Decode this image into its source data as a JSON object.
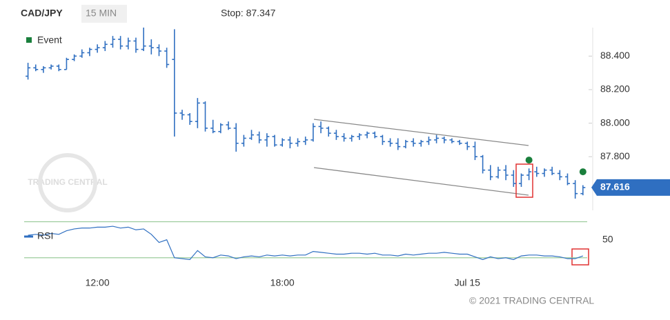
{
  "chart_data": {
    "type": "ohlc",
    "symbol": "CAD/JPY",
    "interval": "15 MIN",
    "stop_label": "Stop: 87.347",
    "copyright": "© 2021 TRADING CENTRAL",
    "watermark": "TRADING CENTRAL",
    "color": "#2f6fc1",
    "categories": [
      null,
      null,
      null,
      null,
      null,
      null,
      null,
      null,
      null,
      "12:00",
      null,
      null,
      null,
      null,
      null,
      null,
      null,
      null,
      null,
      null,
      null,
      null,
      null,
      null,
      null,
      null,
      null,
      null,
      null,
      null,
      null,
      null,
      null,
      "18:00",
      null,
      null,
      null,
      null,
      null,
      null,
      null,
      null,
      null,
      null,
      null,
      null,
      null,
      null,
      null,
      null,
      null,
      null,
      null,
      null,
      null,
      null,
      null,
      "Jul 15",
      null,
      null,
      null,
      null,
      null,
      null,
      null,
      null,
      null,
      null,
      null,
      null,
      null,
      null,
      null
    ],
    "ohlc": [
      [
        88.28,
        88.36,
        88.26,
        88.33
      ],
      [
        88.33,
        88.35,
        88.31,
        88.32
      ],
      [
        88.32,
        88.34,
        88.3,
        88.33
      ],
      [
        88.33,
        88.35,
        88.32,
        88.34
      ],
      [
        88.34,
        88.35,
        88.31,
        88.32
      ],
      [
        88.32,
        88.39,
        88.32,
        88.38
      ],
      [
        88.38,
        88.41,
        88.37,
        88.4
      ],
      [
        88.4,
        88.44,
        88.39,
        88.42
      ],
      [
        88.42,
        88.45,
        88.4,
        88.44
      ],
      [
        88.44,
        88.47,
        88.42,
        88.45
      ],
      [
        88.45,
        88.49,
        88.43,
        88.47
      ],
      [
        88.47,
        88.52,
        88.45,
        88.5
      ],
      [
        88.5,
        88.52,
        88.44,
        88.46
      ],
      [
        88.46,
        88.51,
        88.44,
        88.49
      ],
      [
        88.49,
        88.51,
        88.42,
        88.44
      ],
      [
        88.44,
        88.57,
        88.43,
        88.46
      ],
      [
        88.46,
        88.5,
        88.41,
        88.45
      ],
      [
        88.45,
        88.47,
        88.4,
        88.43
      ],
      [
        88.43,
        88.45,
        88.33,
        88.35
      ],
      [
        88.38,
        88.56,
        87.92,
        88.06
      ],
      [
        88.06,
        88.08,
        88.02,
        88.05
      ],
      [
        88.05,
        88.06,
        87.99,
        88.01
      ],
      [
        88.01,
        88.15,
        87.97,
        88.12
      ],
      [
        88.12,
        88.13,
        87.95,
        87.97
      ],
      [
        87.97,
        88.02,
        87.94,
        87.95
      ],
      [
        87.95,
        88.0,
        87.94,
        87.99
      ],
      [
        87.99,
        88.01,
        87.96,
        87.97
      ],
      [
        87.97,
        88.0,
        87.83,
        87.88
      ],
      [
        87.88,
        87.93,
        87.86,
        87.91
      ],
      [
        87.91,
        87.96,
        87.9,
        87.93
      ],
      [
        87.93,
        87.95,
        87.88,
        87.9
      ],
      [
        87.9,
        87.94,
        87.86,
        87.92
      ],
      [
        87.92,
        87.93,
        87.86,
        87.87
      ],
      [
        87.87,
        87.91,
        87.86,
        87.9
      ],
      [
        87.9,
        87.92,
        87.85,
        87.88
      ],
      [
        87.88,
        87.91,
        87.86,
        87.89
      ],
      [
        87.89,
        87.92,
        87.87,
        87.9
      ],
      [
        87.9,
        88.0,
        87.89,
        87.98
      ],
      [
        87.98,
        88.01,
        87.94,
        87.97
      ],
      [
        87.97,
        87.98,
        87.92,
        87.94
      ],
      [
        87.94,
        87.96,
        87.9,
        87.92
      ],
      [
        87.92,
        87.94,
        87.89,
        87.91
      ],
      [
        87.91,
        87.93,
        87.89,
        87.92
      ],
      [
        87.92,
        87.94,
        87.9,
        87.93
      ],
      [
        87.93,
        87.95,
        87.91,
        87.94
      ],
      [
        87.94,
        87.95,
        87.91,
        87.92
      ],
      [
        87.92,
        87.93,
        87.87,
        87.89
      ],
      [
        87.89,
        87.91,
        87.86,
        87.88
      ],
      [
        87.88,
        87.91,
        87.84,
        87.86
      ],
      [
        87.86,
        87.9,
        87.85,
        87.89
      ],
      [
        87.89,
        87.91,
        87.86,
        87.88
      ],
      [
        87.88,
        87.9,
        87.86,
        87.89
      ],
      [
        87.89,
        87.92,
        87.87,
        87.9
      ],
      [
        87.9,
        87.93,
        87.88,
        87.91
      ],
      [
        87.91,
        87.92,
        87.88,
        87.9
      ],
      [
        87.9,
        87.91,
        87.88,
        87.89
      ],
      [
        87.89,
        87.9,
        87.87,
        87.88
      ],
      [
        87.88,
        87.89,
        87.84,
        87.86
      ],
      [
        87.86,
        87.89,
        87.78,
        87.8
      ],
      [
        87.8,
        87.81,
        87.7,
        87.72
      ],
      [
        87.72,
        87.75,
        87.66,
        87.68
      ],
      [
        87.68,
        87.74,
        87.67,
        87.72
      ],
      [
        87.72,
        87.75,
        87.66,
        87.69
      ],
      [
        87.69,
        87.72,
        87.62,
        87.64
      ],
      [
        87.64,
        87.7,
        87.62,
        87.69
      ],
      [
        87.69,
        87.73,
        87.66,
        87.71
      ],
      [
        87.71,
        87.74,
        87.68,
        87.7
      ],
      [
        87.7,
        87.73,
        87.68,
        87.72
      ],
      [
        87.72,
        87.74,
        87.69,
        87.7
      ],
      [
        87.7,
        87.72,
        87.66,
        87.68
      ],
      [
        87.68,
        87.7,
        87.63,
        87.64
      ],
      [
        87.64,
        87.66,
        87.55,
        87.58
      ],
      [
        87.58,
        87.63,
        87.57,
        87.616
      ]
    ],
    "last_price": 87.616,
    "ylim": [
      87.48,
      88.57
    ],
    "yticks": [
      {
        "value": 88.4,
        "label": "88.400"
      },
      {
        "value": 88.2,
        "label": "88.200"
      },
      {
        "value": 88.0,
        "label": "88.000"
      },
      {
        "value": 87.8,
        "label": "87.800"
      }
    ],
    "events": {
      "name": "Event",
      "color": "#1a7f3c",
      "x": [
        65,
        72
      ],
      "values": [
        87.78,
        87.71
      ]
    },
    "rsi": {
      "name": "RSI",
      "color": "#2f6fc1",
      "level_color": "#9ccc9c",
      "values": [
        55,
        56,
        55,
        57,
        56,
        60,
        62,
        63,
        63,
        64,
        64,
        65,
        63,
        64,
        61,
        62,
        56,
        47,
        50,
        30,
        29,
        28,
        38,
        31,
        30,
        33,
        32,
        29,
        31,
        32,
        31,
        33,
        32,
        33,
        32,
        33,
        33,
        37,
        36,
        35,
        34,
        34,
        35,
        35,
        34,
        35,
        33,
        33,
        32,
        34,
        33,
        34,
        35,
        35,
        36,
        35,
        34,
        34,
        31,
        28,
        31,
        29,
        30,
        28,
        32,
        33,
        33,
        32,
        32,
        31,
        29,
        29,
        32
      ],
      "ylim": [
        16,
        75
      ],
      "yticks": [
        50
      ],
      "levels": [
        30,
        70
      ]
    }
  }
}
